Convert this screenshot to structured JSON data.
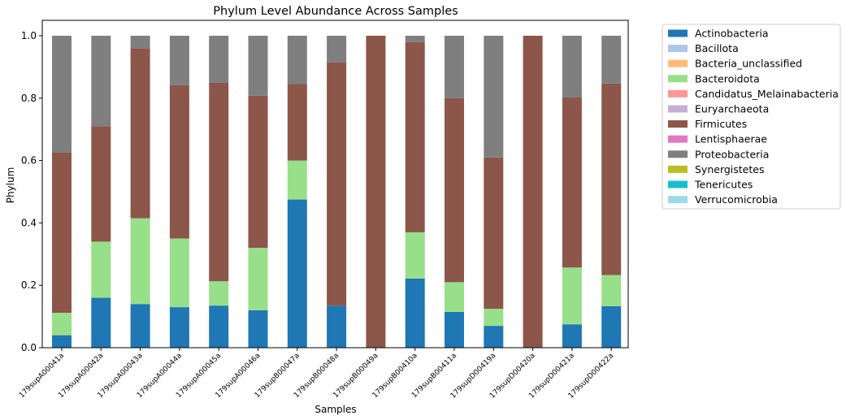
{
  "chart_data": {
    "type": "bar",
    "stacked": true,
    "title": "Phylum Level Abundance Across Samples",
    "xlabel": "Samples",
    "ylabel": "Phylum",
    "ylim": [
      0,
      1.0
    ],
    "yticks": [
      "0.0",
      "0.2",
      "0.4",
      "0.6",
      "0.8",
      "1.0"
    ],
    "legend_position": "outside-right",
    "categories": [
      "179supA00041a",
      "179supA00042a",
      "179supA00043a",
      "179supA00044a",
      "179supA00045a",
      "179supA00046a",
      "179supB00047a",
      "179supB00048a",
      "179supB00049a",
      "179supB00410a",
      "179supB00411a",
      "179supD00419a",
      "179supD00420a",
      "179supD00421a",
      "179supD00422a"
    ],
    "series": [
      {
        "name": "Actinobacteria",
        "color": "#1f77b4",
        "values": [
          0.04,
          0.16,
          0.14,
          0.13,
          0.135,
          0.12,
          0.475,
          0.135,
          0.0,
          0.222,
          0.115,
          0.07,
          0.0,
          0.075,
          0.133
        ]
      },
      {
        "name": "Bacillota",
        "color": "#aec7e8",
        "values": [
          0,
          0,
          0,
          0,
          0,
          0,
          0,
          0,
          0,
          0,
          0,
          0,
          0,
          0,
          0
        ]
      },
      {
        "name": "Bacteria_unclassified",
        "color": "#ffbb78",
        "values": [
          0,
          0,
          0,
          0,
          0,
          0,
          0,
          0,
          0,
          0,
          0,
          0,
          0,
          0,
          0
        ]
      },
      {
        "name": "Bacteroidota",
        "color": "#98df8a",
        "values": [
          0.072,
          0.18,
          0.275,
          0.22,
          0.078,
          0.2,
          0.125,
          0.0,
          0.0,
          0.148,
          0.095,
          0.055,
          0.0,
          0.182,
          0.1
        ]
      },
      {
        "name": "Candidatus_Melainabacteria",
        "color": "#ff9896",
        "values": [
          0,
          0,
          0,
          0,
          0,
          0,
          0,
          0,
          0,
          0,
          0,
          0,
          0,
          0,
          0
        ]
      },
      {
        "name": "Euryarchaeota",
        "color": "#c5b0d5",
        "values": [
          0,
          0,
          0,
          0,
          0,
          0,
          0,
          0,
          0,
          0,
          0,
          0,
          0,
          0,
          0
        ]
      },
      {
        "name": "Firmicutes",
        "color": "#8c564b",
        "values": [
          0.513,
          0.37,
          0.545,
          0.492,
          0.637,
          0.488,
          0.245,
          0.78,
          1.0,
          0.61,
          0.59,
          0.485,
          1.0,
          0.545,
          0.614
        ]
      },
      {
        "name": "Lentisphaerae",
        "color": "#e377c2",
        "values": [
          0,
          0,
          0,
          0,
          0,
          0,
          0,
          0,
          0,
          0,
          0,
          0,
          0,
          0,
          0
        ]
      },
      {
        "name": "Proteobacteria",
        "color": "#7f7f7f",
        "values": [
          0.375,
          0.29,
          0.04,
          0.158,
          0.15,
          0.192,
          0.155,
          0.085,
          0.0,
          0.02,
          0.2,
          0.39,
          0.0,
          0.198,
          0.153
        ]
      },
      {
        "name": "Synergistetes",
        "color": "#bcbd22",
        "values": [
          0,
          0,
          0,
          0,
          0,
          0,
          0,
          0,
          0,
          0,
          0,
          0,
          0,
          0,
          0
        ]
      },
      {
        "name": "Tenericutes",
        "color": "#17becf",
        "values": [
          0,
          0,
          0,
          0,
          0,
          0,
          0,
          0,
          0,
          0,
          0,
          0,
          0,
          0,
          0
        ]
      },
      {
        "name": "Verrucomicrobia",
        "color": "#9edae5",
        "values": [
          0,
          0,
          0,
          0,
          0,
          0,
          0,
          0,
          0,
          0,
          0,
          0,
          0,
          0,
          0
        ]
      }
    ]
  }
}
